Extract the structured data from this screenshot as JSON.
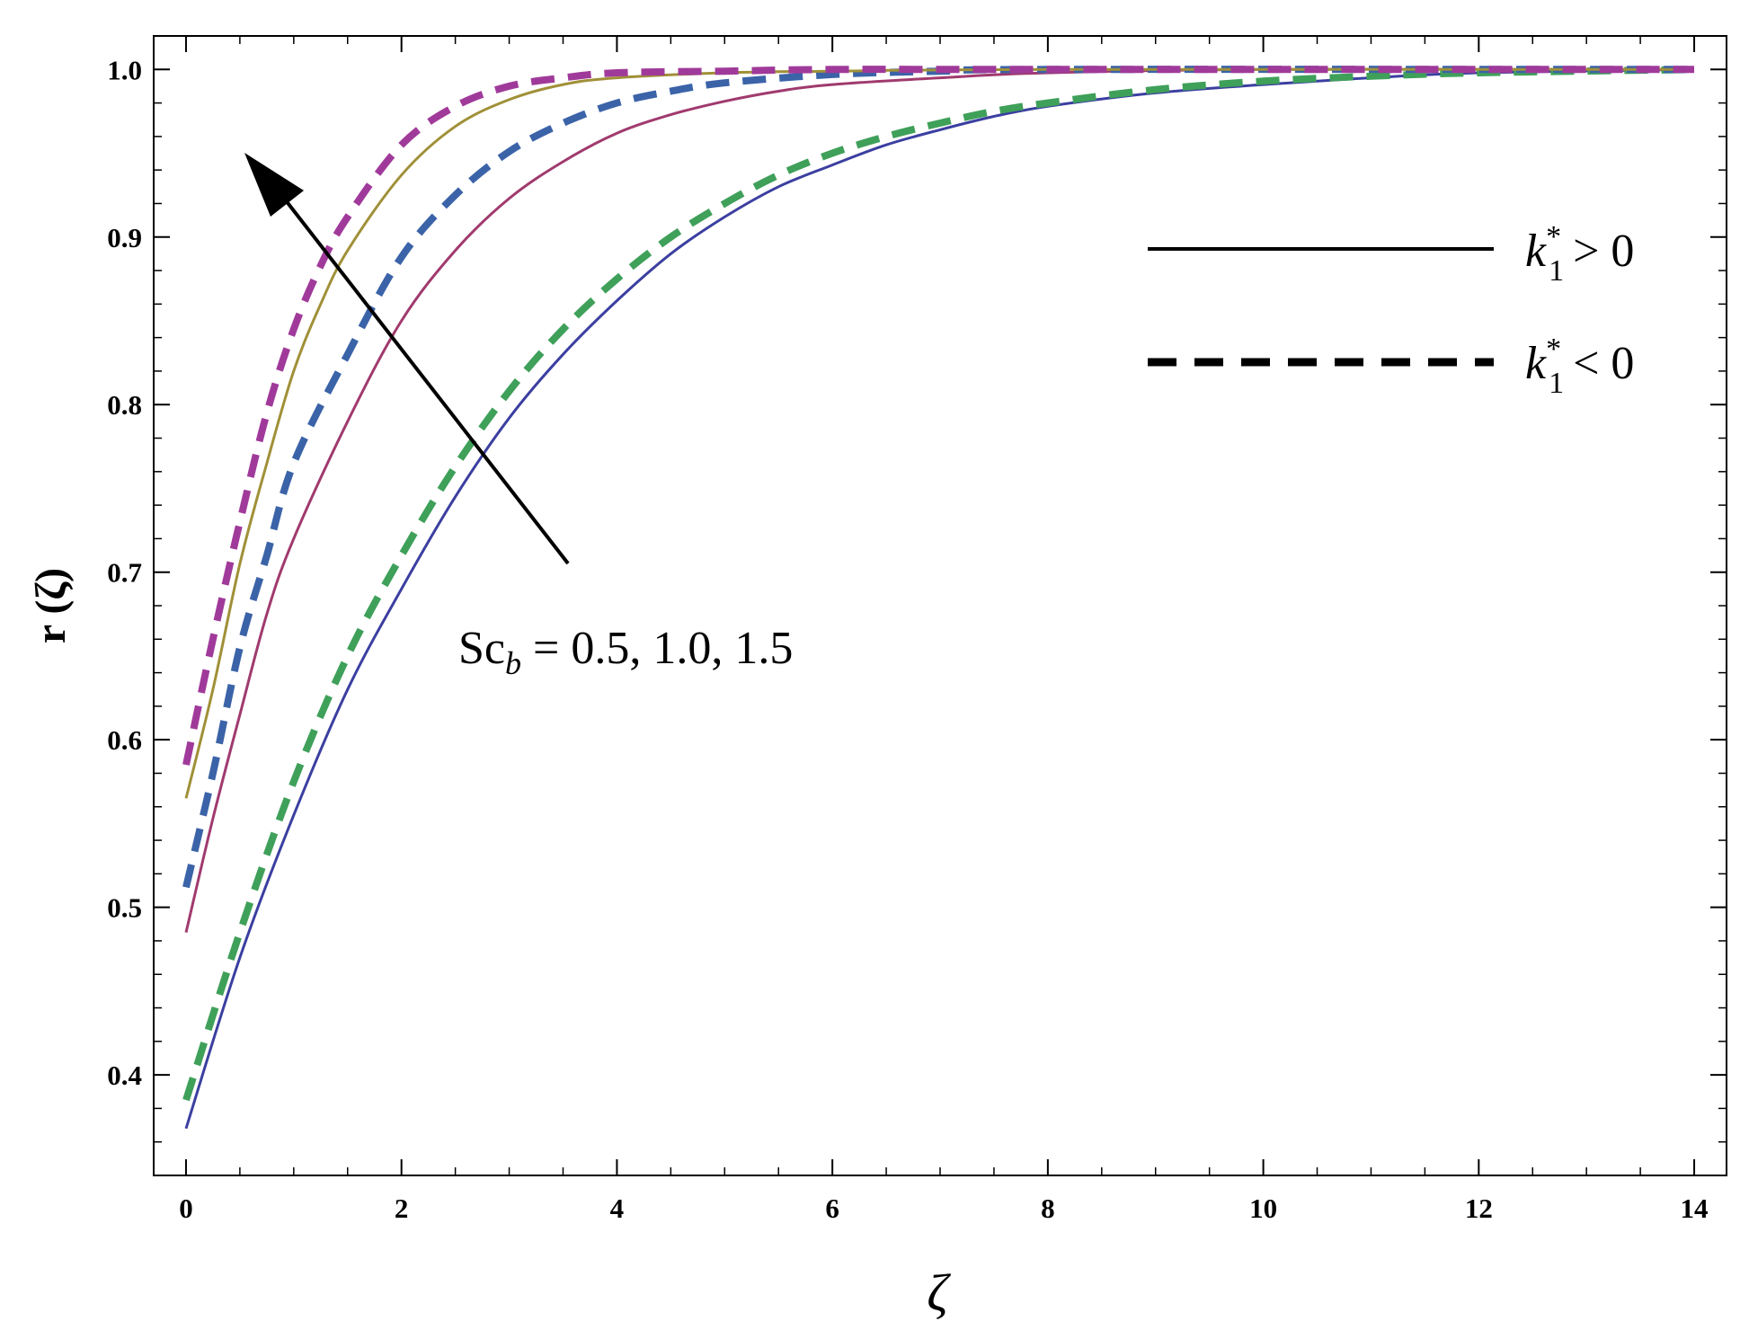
{
  "chart_data": {
    "type": "line",
    "xlabel": "ζ",
    "ylabel": "r (ζ)",
    "xlim": [
      -0.3,
      14.3
    ],
    "ylim": [
      0.34,
      1.02
    ],
    "xticks": [
      0,
      2,
      4,
      6,
      8,
      10,
      12,
      14
    ],
    "yticks": [
      0.4,
      0.5,
      0.6,
      0.7,
      0.8,
      0.9,
      1.0
    ],
    "xtick_labels": [
      "0",
      "2",
      "4",
      "6",
      "8",
      "10",
      "12",
      "14"
    ],
    "ytick_labels": [
      "0.4",
      "0.5",
      "0.6",
      "0.7",
      "0.8",
      "0.9",
      "1.0"
    ],
    "grid": false,
    "legend_position": "top-right",
    "legend": [
      {
        "label_main": "k",
        "label_sub": "1",
        "label_sup": "*",
        "label_rel": "> 0",
        "style": "solid"
      },
      {
        "label_main": "k",
        "label_sub": "1",
        "label_sup": "*",
        "label_rel": "< 0",
        "style": "dashed"
      }
    ],
    "annotation": {
      "prefix": "Sc",
      "subscript": "b",
      "text": " = 0.5, 1.0, 1.5"
    },
    "series": [
      {
        "color": "#3b3fa0",
        "style": "solid",
        "x": [
          0,
          0.5,
          1,
          1.5,
          2,
          2.5,
          3,
          3.5,
          4,
          4.5,
          5,
          5.5,
          6,
          6.5,
          7,
          7.5,
          8,
          9,
          10,
          11,
          12,
          14
        ],
        "y": [
          0.368,
          0.47,
          0.555,
          0.63,
          0.69,
          0.745,
          0.792,
          0.83,
          0.862,
          0.89,
          0.912,
          0.93,
          0.943,
          0.955,
          0.964,
          0.972,
          0.978,
          0.986,
          0.991,
          0.995,
          0.998,
          1.0
        ]
      },
      {
        "color": "#3fa05a",
        "style": "dashed",
        "x": [
          0,
          0.5,
          1,
          1.5,
          2,
          2.5,
          3,
          3.5,
          4,
          4.5,
          5,
          5.5,
          6,
          6.5,
          7,
          7.5,
          8,
          9,
          10,
          11,
          12,
          14
        ],
        "y": [
          0.385,
          0.485,
          0.575,
          0.65,
          0.71,
          0.763,
          0.808,
          0.845,
          0.875,
          0.9,
          0.92,
          0.937,
          0.95,
          0.96,
          0.968,
          0.975,
          0.98,
          0.988,
          0.993,
          0.996,
          0.998,
          1.0
        ]
      },
      {
        "color": "#a03a6e",
        "style": "solid",
        "x": [
          0,
          0.25,
          0.5,
          0.75,
          1,
          1.5,
          2,
          2.5,
          3,
          3.5,
          4,
          4.5,
          5,
          5.5,
          6,
          7,
          8,
          10,
          14
        ],
        "y": [
          0.485,
          0.553,
          0.615,
          0.675,
          0.72,
          0.79,
          0.85,
          0.892,
          0.923,
          0.945,
          0.962,
          0.973,
          0.981,
          0.987,
          0.991,
          0.995,
          0.998,
          1.0,
          1.0
        ]
      },
      {
        "color": "#3b63a8",
        "style": "dashed",
        "x": [
          0,
          0.25,
          0.5,
          0.75,
          1,
          1.5,
          2,
          2.5,
          3,
          3.5,
          4,
          4.5,
          5,
          6,
          7,
          8,
          14
        ],
        "y": [
          0.512,
          0.58,
          0.655,
          0.71,
          0.765,
          0.83,
          0.888,
          0.925,
          0.951,
          0.968,
          0.98,
          0.987,
          0.992,
          0.997,
          0.999,
          1.0,
          1.0
        ]
      },
      {
        "color": "#a09038",
        "style": "solid",
        "x": [
          0,
          0.25,
          0.5,
          0.75,
          1,
          1.25,
          1.5,
          2,
          2.5,
          3,
          3.5,
          4,
          5,
          6,
          8,
          14
        ],
        "y": [
          0.565,
          0.63,
          0.705,
          0.765,
          0.82,
          0.86,
          0.892,
          0.937,
          0.966,
          0.982,
          0.991,
          0.995,
          0.998,
          0.999,
          1.0,
          1.0
        ]
      },
      {
        "color": "#a03a9a",
        "style": "dashed",
        "x": [
          0,
          0.25,
          0.5,
          0.75,
          1,
          1.25,
          1.5,
          2,
          2.5,
          3,
          3.5,
          4,
          5,
          6,
          8,
          14
        ],
        "y": [
          0.585,
          0.66,
          0.73,
          0.795,
          0.845,
          0.883,
          0.912,
          0.955,
          0.978,
          0.99,
          0.995,
          0.998,
          0.999,
          1.0,
          1.0,
          1.0
        ]
      }
    ]
  }
}
